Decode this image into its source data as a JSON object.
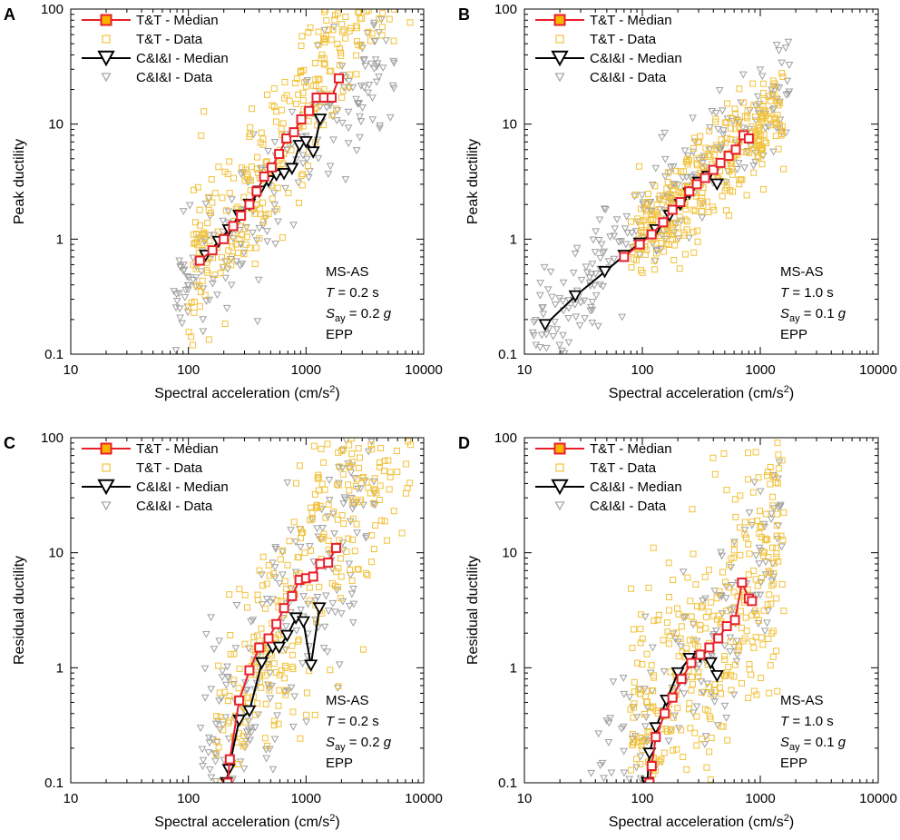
{
  "colors": {
    "tt_line": "#e8202a",
    "tt_fill": "#f7b500",
    "tt_data": "#f2c23c",
    "ci_line": "#000000",
    "ci_data": "#a0a0a0"
  },
  "chart_data": [
    {
      "panel": "A",
      "type": "scatter",
      "xlabel": "Spectral acceleration (cm/s²)",
      "xlabel_main": "Spectral acceleration (cm/s",
      "xlabel_sup": "2",
      "xlabel_end": ")",
      "ylabel": "Peak ductility",
      "xscale": "log",
      "yscale": "log",
      "xlim": [
        10,
        10000
      ],
      "ylim": [
        0.1,
        100
      ],
      "xticks": [
        "10",
        "100",
        "1000",
        "10000"
      ],
      "yticks": [
        "0.1",
        "1",
        "10",
        "100"
      ],
      "legend": [
        "T&T - Median",
        "T&T - Data",
        "C&I&I - Median",
        "C&I&I - Data"
      ],
      "annotation": {
        "line1": "MS-AS",
        "T_sym": "T",
        "T_val": " = 0.2 s",
        "S_sym": "S",
        "S_sub": "ay",
        "S_val": " = 0.2 ",
        "S_unit": "g",
        "line4": "EPP"
      },
      "tt_median": {
        "x": [
          125,
          160,
          200,
          240,
          280,
          330,
          380,
          440,
          510,
          590,
          680,
          790,
          910,
          1060,
          1230,
          1420,
          1650,
          1900
        ],
        "y": [
          0.65,
          0.8,
          1.0,
          1.3,
          1.6,
          2.0,
          2.6,
          3.5,
          4.2,
          5.5,
          7.5,
          8.5,
          11,
          13,
          17,
          17,
          17,
          25
        ]
      },
      "ci_median": {
        "x": [
          140,
          180,
          220,
          270,
          330,
          400,
          480,
          560,
          650,
          760,
          880,
          1000,
          1150,
          1320
        ],
        "y": [
          0.72,
          0.95,
          1.2,
          1.6,
          2.0,
          2.6,
          3.2,
          3.6,
          3.7,
          4.1,
          6.5,
          7.0,
          5.7,
          11
        ]
      },
      "tt_cloud": {
        "seed": 11,
        "n": 340,
        "x_log_range": [
          2.0,
          3.9
        ],
        "slope": 1.55,
        "y_at_x0": 0.65,
        "x0": 125,
        "sigma": 0.35
      },
      "ci_cloud": {
        "seed": 23,
        "n": 220,
        "x_log_range": [
          1.85,
          3.75
        ],
        "slope": 1.2,
        "y_at_x0": 0.7,
        "x0": 140,
        "sigma": 0.3
      }
    },
    {
      "panel": "B",
      "type": "scatter",
      "xlabel": "Spectral acceleration (cm/s²)",
      "xlabel_main": "Spectral acceleration (cm/s",
      "xlabel_sup": "2",
      "xlabel_end": ")",
      "ylabel": "Peak ductility",
      "xscale": "log",
      "yscale": "log",
      "xlim": [
        10,
        10000
      ],
      "ylim": [
        0.1,
        100
      ],
      "xticks": [
        "10",
        "100",
        "1000",
        "10000"
      ],
      "yticks": [
        "0.1",
        "1",
        "10",
        "100"
      ],
      "legend": [
        "T&T - Median",
        "T&T - Data",
        "C&I&I - Median",
        "C&I&I - Data"
      ],
      "annotation": {
        "line1": "MS-AS",
        "T_sym": "T",
        "T_val": " = 1.0 s",
        "S_sym": "S",
        "S_sub": "ay",
        "S_val": " = 0.1 ",
        "S_unit": "g",
        "line4": "EPP"
      },
      "tt_median": {
        "x": [
          70,
          95,
          120,
          150,
          180,
          210,
          250,
          290,
          340,
          400,
          460,
          540,
          620,
          720,
          800
        ],
        "y": [
          0.7,
          0.9,
          1.1,
          1.4,
          1.8,
          2.1,
          2.6,
          3.0,
          3.4,
          4.0,
          4.6,
          5.3,
          6.0,
          8.0,
          7.5
        ]
      },
      "ci_median": {
        "x": [
          15,
          27,
          48,
          70,
          95,
          130,
          170,
          210,
          250,
          300,
          360,
          430
        ],
        "y": [
          0.18,
          0.32,
          0.52,
          0.72,
          0.92,
          1.2,
          1.6,
          2.0,
          2.5,
          3.1,
          3.5,
          3.0
        ]
      },
      "tt_cloud": {
        "seed": 37,
        "n": 320,
        "x_log_range": [
          1.9,
          3.2
        ],
        "slope": 0.95,
        "y_at_x0": 0.7,
        "x0": 70,
        "sigma": 0.22
      },
      "ci_cloud": {
        "seed": 41,
        "n": 260,
        "x_log_range": [
          1.05,
          3.25
        ],
        "slope": 1.0,
        "y_at_x0": 0.18,
        "x0": 15,
        "sigma": 0.25
      }
    },
    {
      "panel": "C",
      "type": "scatter",
      "xlabel": "Spectral acceleration (cm/s²)",
      "xlabel_main": "Spectral acceleration (cm/s",
      "xlabel_sup": "2",
      "xlabel_end": ")",
      "ylabel": "Residual ductility",
      "xscale": "log",
      "yscale": "log",
      "xlim": [
        10,
        10000
      ],
      "ylim": [
        0.1,
        100
      ],
      "xticks": [
        "10",
        "100",
        "1000",
        "10000"
      ],
      "yticks": [
        "0.1",
        "1",
        "10",
        "100"
      ],
      "legend": [
        "T&T - Median",
        "T&T - Data",
        "C&I&I - Median",
        "C&I&I - Data"
      ],
      "annotation": {
        "line1": "MS-AS",
        "T_sym": "T",
        "T_val": " = 0.2 s",
        "S_sym": "S",
        "S_sub": "ay",
        "S_val": " = 0.2 ",
        "S_unit": "g",
        "line4": "EPP"
      },
      "tt_median": {
        "x": [
          215,
          225,
          270,
          330,
          400,
          480,
          560,
          650,
          760,
          880,
          1000,
          1150,
          1320,
          1540,
          1800
        ],
        "y": [
          0.1,
          0.16,
          0.52,
          0.95,
          1.5,
          1.8,
          2.4,
          3.3,
          4.2,
          5.8,
          6.0,
          6.2,
          8.0,
          8.2,
          11
        ]
      },
      "ci_median": {
        "x": [
          210,
          220,
          270,
          330,
          420,
          520,
          590,
          690,
          820,
          950,
          1100,
          1300
        ],
        "y": [
          0.1,
          0.13,
          0.35,
          0.42,
          1.1,
          1.5,
          1.5,
          1.9,
          2.7,
          2.5,
          1.05,
          3.3
        ]
      },
      "tt_cloud": {
        "seed": 53,
        "n": 360,
        "x_log_range": [
          2.2,
          3.9
        ],
        "slope": 2.0,
        "y_at_x0": 0.35,
        "x0": 250,
        "sigma": 0.55
      },
      "ci_cloud": {
        "seed": 59,
        "n": 230,
        "x_log_range": [
          2.1,
          3.6
        ],
        "slope": 1.8,
        "y_at_x0": 0.3,
        "x0": 230,
        "sigma": 0.5
      }
    },
    {
      "panel": "D",
      "type": "scatter",
      "xlabel": "Spectral acceleration (cm/s²)",
      "xlabel_main": "Spectral acceleration (cm/s",
      "xlabel_sup": "2",
      "xlabel_end": ")",
      "ylabel": "Residual ductility",
      "xscale": "log",
      "yscale": "log",
      "xlim": [
        10,
        10000
      ],
      "ylim": [
        0.1,
        100
      ],
      "xticks": [
        "10",
        "100",
        "1000",
        "10000"
      ],
      "yticks": [
        "0.1",
        "1",
        "10",
        "100"
      ],
      "legend": [
        "T&T - Median",
        "T&T - Data",
        "C&I&I - Median",
        "C&I&I - Data"
      ],
      "annotation": {
        "line1": "MS-AS",
        "T_sym": "T",
        "T_val": " = 1.0 s",
        "S_sym": "S",
        "S_sub": "ay",
        "S_val": " = 0.1 ",
        "S_unit": "g",
        "line4": "EPP"
      },
      "tt_median": {
        "x": [
          115,
          120,
          130,
          155,
          180,
          215,
          260,
          310,
          370,
          440,
          520,
          610,
          700,
          800,
          850
        ],
        "y": [
          0.1,
          0.14,
          0.25,
          0.4,
          0.55,
          0.8,
          1.1,
          1.3,
          1.5,
          1.8,
          2.3,
          2.6,
          5.5,
          4.0,
          3.8
        ]
      },
      "ci_median": {
        "x": [
          110,
          115,
          130,
          160,
          200,
          250,
          310,
          380,
          430
        ],
        "y": [
          0.1,
          0.18,
          0.3,
          0.52,
          0.9,
          1.2,
          1.25,
          1.1,
          0.85
        ]
      },
      "tt_cloud": {
        "seed": 67,
        "n": 350,
        "x_log_range": [
          1.9,
          3.2
        ],
        "slope": 1.5,
        "y_at_x0": 0.9,
        "x0": 250,
        "sigma": 0.55
      },
      "ci_cloud": {
        "seed": 71,
        "n": 180,
        "x_log_range": [
          1.55,
          3.2
        ],
        "slope": 1.5,
        "y_at_x0": 0.7,
        "x0": 200,
        "sigma": 0.45
      }
    }
  ]
}
